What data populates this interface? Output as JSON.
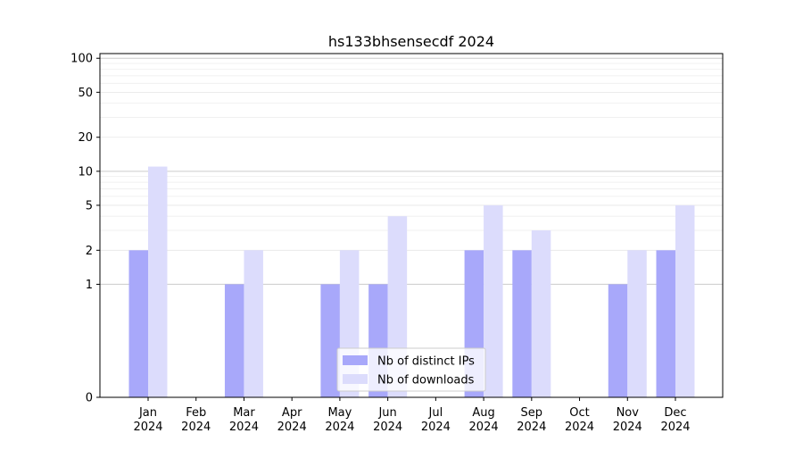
{
  "chart_data": {
    "type": "bar",
    "title": "hs133bhsensecdf 2024",
    "xlabel": "",
    "ylabel": "",
    "categories": [
      {
        "month": "Jan",
        "year": "2024"
      },
      {
        "month": "Feb",
        "year": "2024"
      },
      {
        "month": "Mar",
        "year": "2024"
      },
      {
        "month": "Apr",
        "year": "2024"
      },
      {
        "month": "May",
        "year": "2024"
      },
      {
        "month": "Jun",
        "year": "2024"
      },
      {
        "month": "Jul",
        "year": "2024"
      },
      {
        "month": "Aug",
        "year": "2024"
      },
      {
        "month": "Sep",
        "year": "2024"
      },
      {
        "month": "Oct",
        "year": "2024"
      },
      {
        "month": "Nov",
        "year": "2024"
      },
      {
        "month": "Dec",
        "year": "2024"
      }
    ],
    "series": [
      {
        "name": "Nb of distinct IPs",
        "color": "#a8a8fa",
        "values": [
          2,
          0,
          1,
          0,
          1,
          1,
          0,
          2,
          2,
          0,
          1,
          2
        ]
      },
      {
        "name": "Nb of downloads",
        "color": "#dcdcfc",
        "values": [
          11,
          0,
          2,
          0,
          2,
          4,
          0,
          5,
          3,
          0,
          2,
          5
        ]
      }
    ],
    "y_scale": "symlog",
    "ylim": [
      0,
      110
    ],
    "yticks": [
      0,
      1,
      2,
      5,
      10,
      20,
      50,
      100
    ],
    "grid": "horizontal",
    "legend_position": "bottom-center"
  }
}
